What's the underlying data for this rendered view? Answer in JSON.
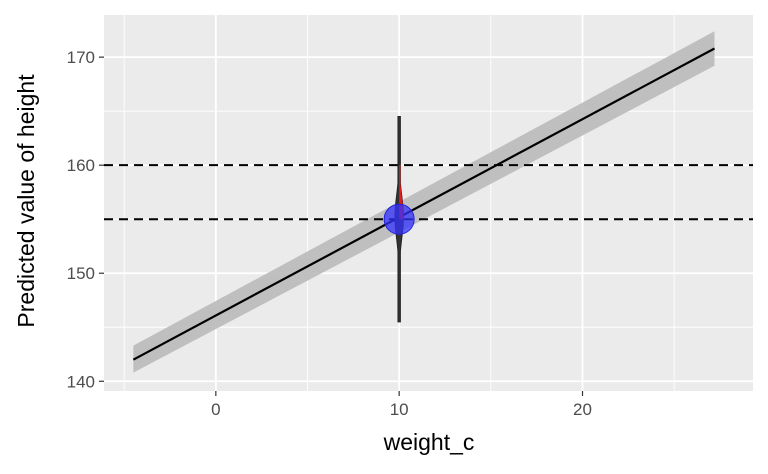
{
  "chart_data": {
    "type": "line",
    "title": "",
    "xlabel": "weight_c",
    "ylabel": "Predicted value of height",
    "xlim": [
      -6.1,
      29.3
    ],
    "ylim": [
      139.1,
      173.9
    ],
    "x_ticks": [
      0,
      10,
      20
    ],
    "x_tick_labels": [
      "0",
      "10",
      "20"
    ],
    "x_minor_ticks": [
      -5,
      5,
      15,
      25
    ],
    "y_ticks": [
      140,
      150,
      160,
      170
    ],
    "y_tick_labels": [
      "140",
      "150",
      "160",
      "170"
    ],
    "y_minor_ticks": [
      145,
      155,
      165
    ],
    "grid": true,
    "regression_line": {
      "x": [
        -4.5,
        27.2
      ],
      "y": [
        142.0,
        170.8
      ],
      "ci_lower": [
        140.8,
        169.2
      ],
      "ci_upper": [
        143.3,
        172.4
      ]
    },
    "reference_lines_y": [
      155,
      160
    ],
    "point": {
      "x": 10,
      "y": 155
    },
    "posterior_density": {
      "x_center": 10,
      "y_min": 145.5,
      "y_max": 164.5,
      "mode": 155.2,
      "shaded_from": 155,
      "shaded_to": 160
    },
    "colors": {
      "panel_background": "#ebebeb",
      "grid_line": "#ffffff",
      "line": "#000000",
      "ribbon": "#bdbdbd",
      "point": "#3333ff",
      "shaded_region": "#e41a1c",
      "density": "#333333"
    }
  }
}
